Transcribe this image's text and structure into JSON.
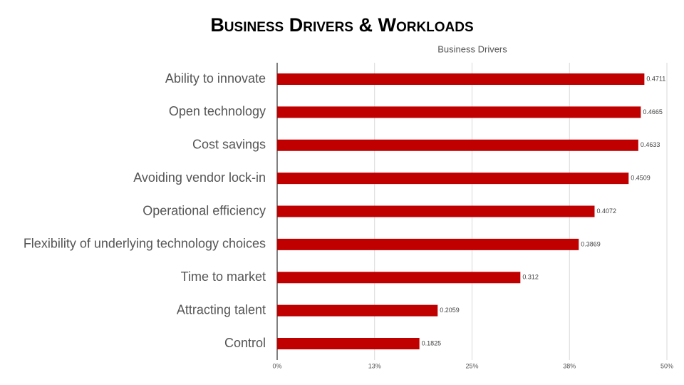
{
  "chart_data": {
    "type": "bar",
    "orientation": "horizontal",
    "title": "Business Drivers & Workloads",
    "subtitle": "Business Drivers",
    "categories": [
      "Ability to innovate",
      "Open technology",
      "Cost savings",
      "Avoiding vendor lock-in",
      "Operational efficiency",
      "Flexibility of underlying technology choices",
      "Time to market",
      "Attracting talent",
      "Control"
    ],
    "values": [
      0.4711,
      0.4665,
      0.4633,
      0.4509,
      0.4072,
      0.3869,
      0.312,
      0.2059,
      0.1825
    ],
    "color": "#c00000",
    "xlim": [
      0,
      0.5
    ],
    "xticks": [
      {
        "value": 0,
        "label": "0%"
      },
      {
        "value": 0.125,
        "label": "13%"
      },
      {
        "value": 0.25,
        "label": "25%"
      },
      {
        "value": 0.375,
        "label": "38%"
      },
      {
        "value": 0.5,
        "label": "50%"
      }
    ],
    "grid": true
  }
}
